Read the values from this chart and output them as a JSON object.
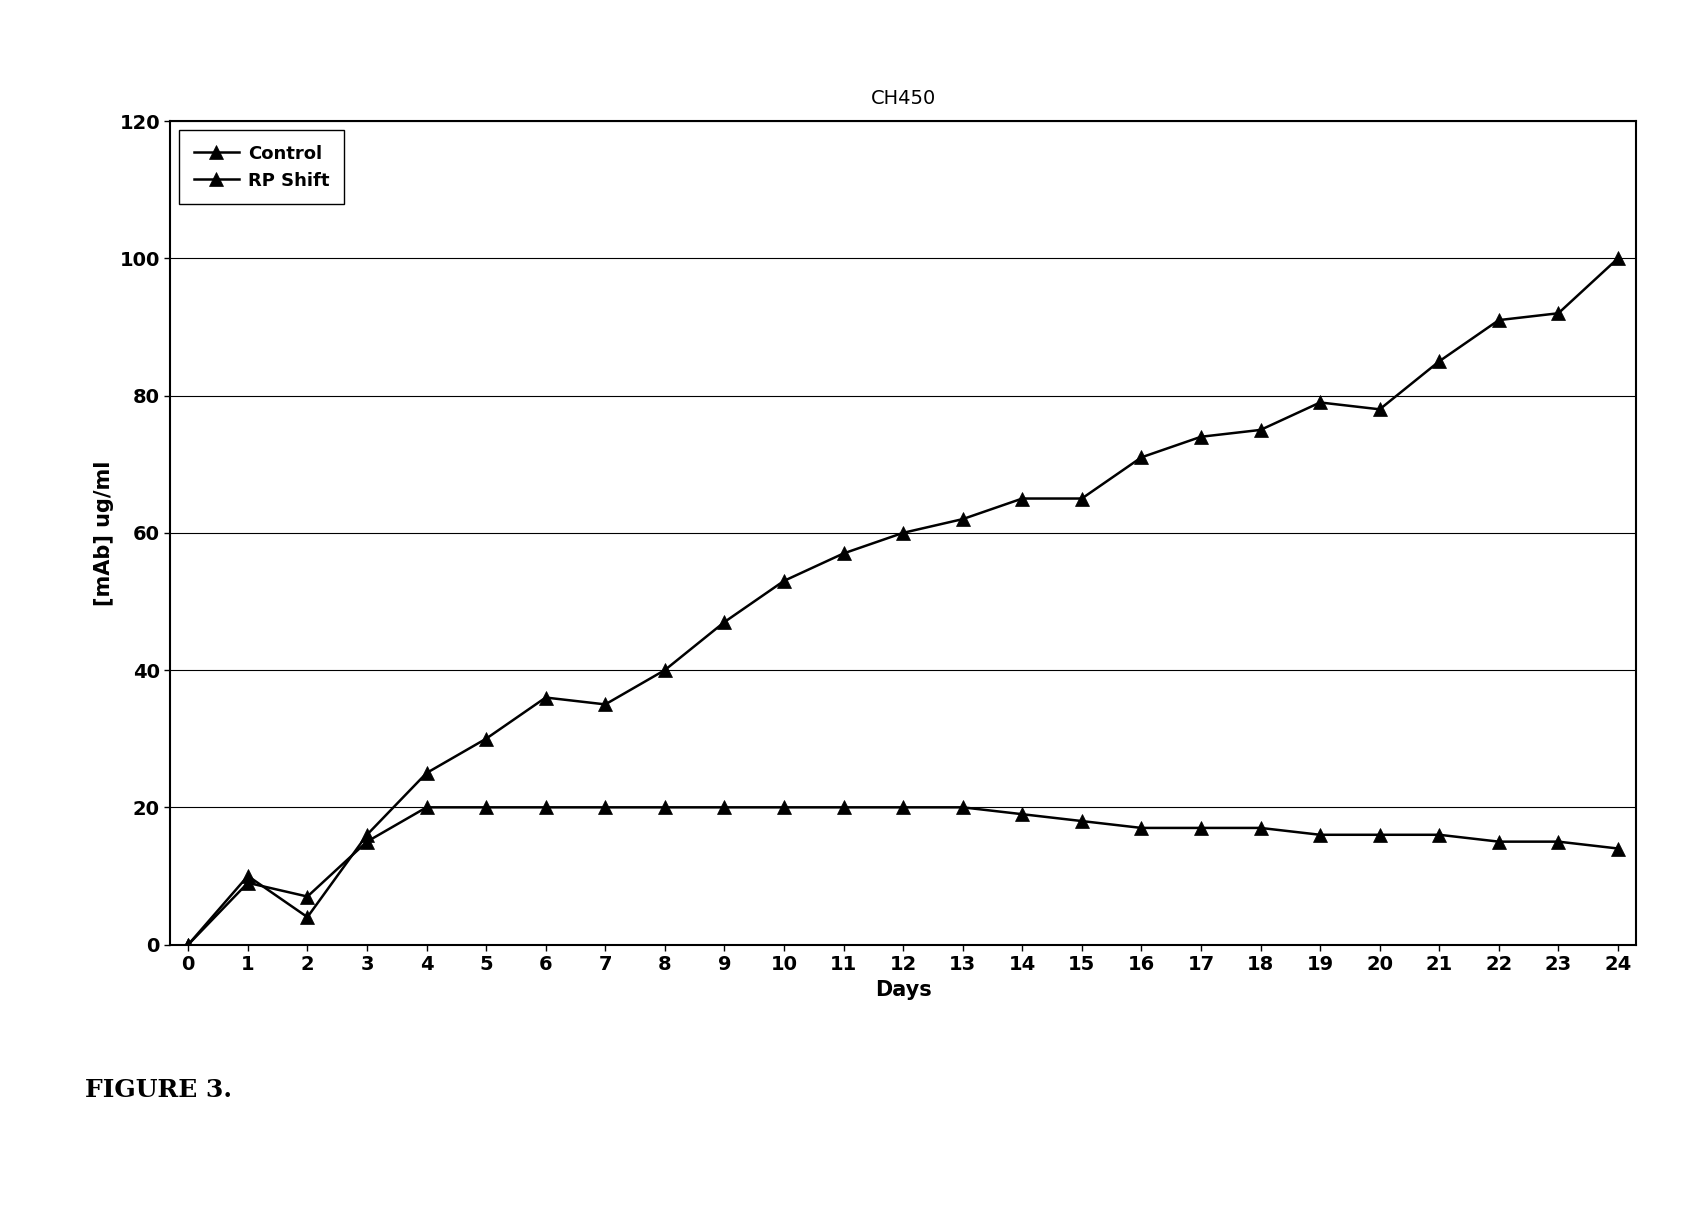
{
  "title": "CH450",
  "xlabel": "Days",
  "ylabel": "[mAb] ug/ml",
  "figure_caption": "FIGURE 3.",
  "ylim": [
    0,
    120
  ],
  "xlim": [
    -0.3,
    24.3
  ],
  "yticks": [
    0,
    20,
    40,
    60,
    80,
    100,
    120
  ],
  "xticks": [
    0,
    1,
    2,
    3,
    4,
    5,
    6,
    7,
    8,
    9,
    10,
    11,
    12,
    13,
    14,
    15,
    16,
    17,
    18,
    19,
    20,
    21,
    22,
    23,
    24
  ],
  "control_x": [
    0,
    1,
    2,
    3,
    4,
    5,
    6,
    7,
    8,
    9,
    10,
    11,
    12,
    13,
    14,
    15,
    16,
    17,
    18,
    19,
    20,
    21,
    22,
    23,
    24
  ],
  "control_y": [
    0,
    9,
    7,
    15,
    20,
    20,
    20,
    20,
    20,
    20,
    20,
    20,
    20,
    20,
    19,
    18,
    17,
    17,
    17,
    16,
    16,
    16,
    15,
    15,
    14
  ],
  "rp_shift_x": [
    0,
    1,
    2,
    3,
    4,
    5,
    6,
    7,
    8,
    9,
    10,
    11,
    12,
    13,
    14,
    15,
    16,
    17,
    18,
    19,
    20,
    21,
    22,
    23,
    24
  ],
  "rp_shift_y": [
    0,
    10,
    4,
    16,
    25,
    30,
    36,
    35,
    40,
    47,
    53,
    57,
    60,
    62,
    65,
    65,
    71,
    74,
    75,
    79,
    78,
    85,
    91,
    92,
    100
  ],
  "line_color": "#000000",
  "marker_color": "#000000",
  "background_color": "#ffffff",
  "legend_labels": [
    "Control",
    "RP Shift"
  ],
  "title_fontsize": 14,
  "axis_label_fontsize": 15,
  "tick_fontsize": 14,
  "legend_fontsize": 13,
  "caption_fontsize": 18,
  "marker_size": 10,
  "linewidth": 1.8
}
